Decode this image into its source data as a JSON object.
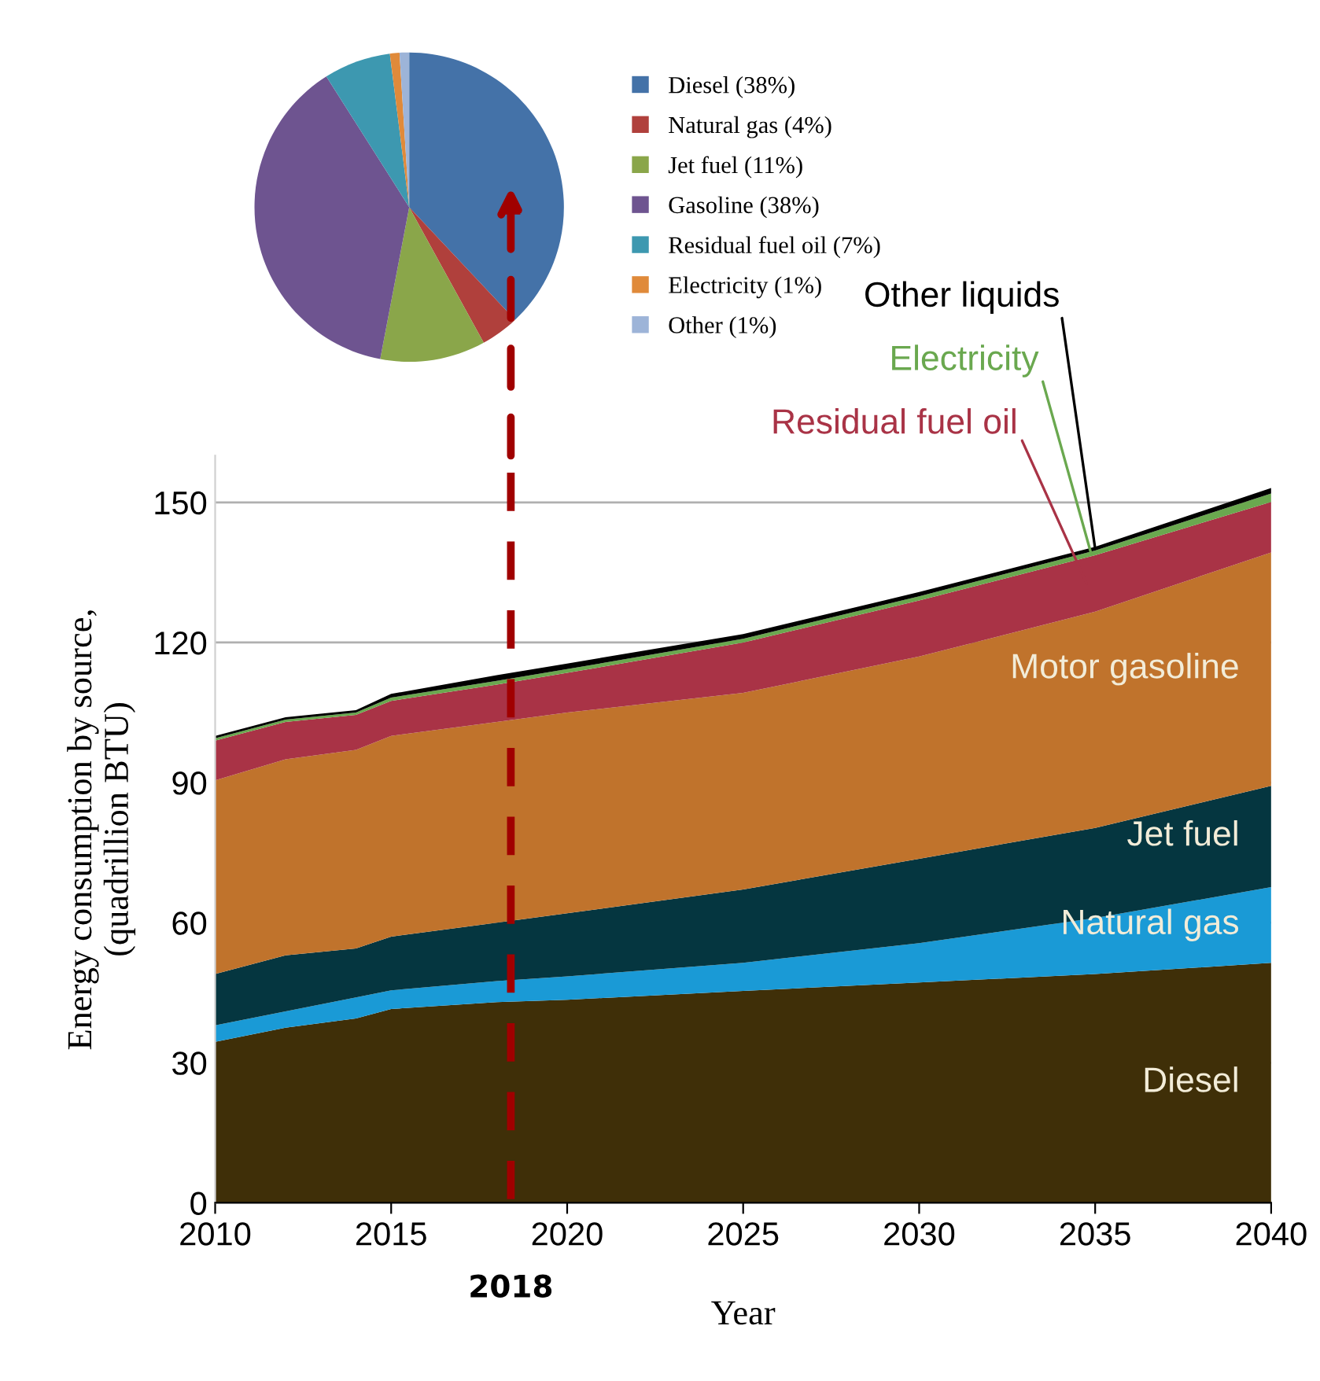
{
  "chart_data": [
    {
      "type": "pie",
      "categories": [
        "Diesel (38%)",
        "Natural gas (4%)",
        "Jet fuel (11%)",
        "Gasoline (38%)",
        "Residual fuel oil (7%)",
        "Electricity (1%)",
        "Other (1%)"
      ],
      "values": [
        38,
        4,
        11,
        38,
        7,
        1,
        1
      ],
      "colors": [
        "#4472a8",
        "#b0403c",
        "#8aa64a",
        "#6e5490",
        "#3d98b0",
        "#e08a3a",
        "#9db4d8"
      ],
      "legend": "right"
    },
    {
      "type": "area",
      "stacked": true,
      "xlabel": "Year",
      "ylabel": "Energy consumption by source,\n(quadrillion BTU)",
      "x": [
        2010,
        2012,
        2014,
        2015,
        2018,
        2020,
        2025,
        2030,
        2035,
        2040
      ],
      "series": [
        {
          "name": "Diesel",
          "color": "#3f2f08",
          "values": [
            34.5,
            37.5,
            39.5,
            41.5,
            43,
            43.5,
            45.4,
            47.2,
            49,
            51.4
          ]
        },
        {
          "name": "Natural gas",
          "color": "#1a9ad6",
          "values": [
            3.5,
            3.5,
            4.5,
            4,
            4.5,
            5,
            6,
            8.4,
            12,
            16.2
          ]
        },
        {
          "name": "Jet fuel",
          "color": "#053640",
          "values": [
            11,
            12,
            10.5,
            11.5,
            12.5,
            13.5,
            15.7,
            18.1,
            19.3,
            21.7
          ]
        },
        {
          "name": "Motor gasoline",
          "color": "#c0732c",
          "values": [
            41.5,
            42,
            42.5,
            43,
            43,
            43,
            42.1,
            43.3,
            46.3,
            50
          ]
        },
        {
          "name": "Residual fuel oil",
          "color": "#a93346",
          "values": [
            8.5,
            8,
            7.5,
            7.5,
            8,
            8.5,
            10.8,
            12,
            12.1,
            10.8
          ]
        },
        {
          "name": "Electricity",
          "color": "#6aa84f",
          "values": [
            0.5,
            0.5,
            0.5,
            0.7,
            0.8,
            0.8,
            0.8,
            0.9,
            1,
            1.8
          ]
        },
        {
          "name": "Other liquids",
          "color": "#000000",
          "values": [
            0.5,
            0.5,
            0.5,
            0.8,
            1.2,
            1.2,
            1,
            0.9,
            0.8,
            1.2
          ]
        }
      ],
      "xlim": [
        2010,
        2040
      ],
      "xticks": [
        2010,
        2015,
        2020,
        2025,
        2030,
        2035,
        2040
      ],
      "ylim": [
        0,
        160
      ],
      "yticks": [
        0,
        30,
        60,
        90,
        120,
        150
      ],
      "grid": "y",
      "ref_lines": [
        {
          "axis": "x",
          "value": 2018.4,
          "label": "2018",
          "color": "#a00000",
          "line_style": "dashed"
        }
      ]
    }
  ]
}
